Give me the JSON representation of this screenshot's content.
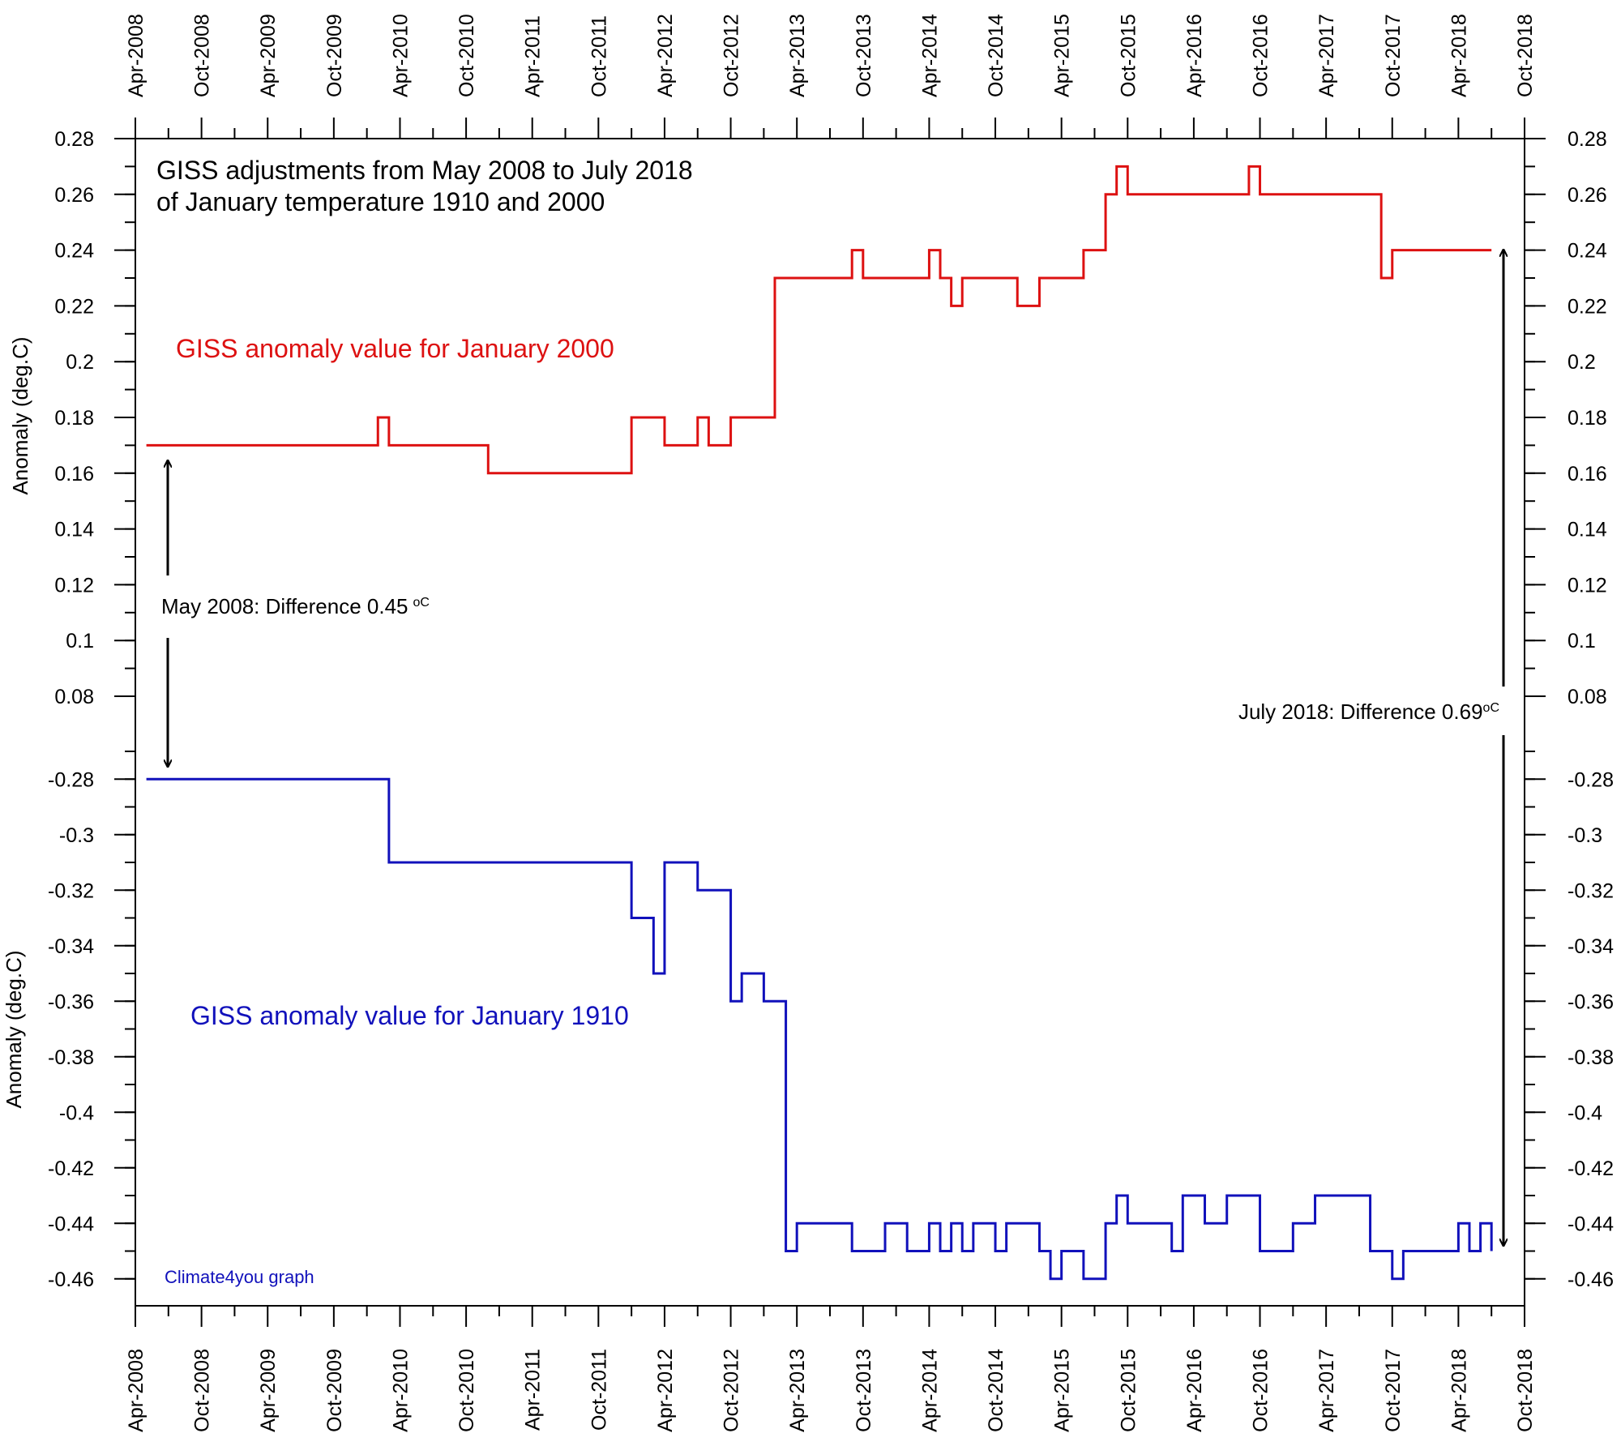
{
  "chart_data": {
    "type": "line",
    "step": true,
    "title_lines": [
      "GISS adjustments from May 2008 to July 2018",
      "of January temperature 1910 and 2000"
    ],
    "ylabel": "Anomaly (deg.C)",
    "credit": "Climate4you graph",
    "x_ticks": [
      "Apr-2008",
      "Oct-2008",
      "Apr-2009",
      "Oct-2009",
      "Apr-2010",
      "Oct-2010",
      "Apr-2011",
      "Oct-2011",
      "Apr-2012",
      "Oct-2012",
      "Apr-2013",
      "Oct-2013",
      "Apr-2014",
      "Oct-2014",
      "Apr-2015",
      "Oct-2015",
      "Apr-2016",
      "Oct-2016",
      "Apr-2017",
      "Oct-2017",
      "Apr-2018",
      "Oct-2018"
    ],
    "x_range": [
      "2008-04",
      "2018-10"
    ],
    "panels": [
      {
        "ylim": [
          0.08,
          0.28
        ],
        "y_ticks": [
          "0.08",
          "0.1",
          "0.12",
          "0.14",
          "0.16",
          "0.18",
          "0.2",
          "0.22",
          "0.24",
          "0.26",
          "0.28"
        ],
        "series": [
          {
            "name": "GISS anomaly value for January 2000",
            "color": "#dd1111",
            "x": [
              "2008-05",
              "2010-02",
              "2010-03",
              "2010-12",
              "2012-01",
              "2012-04",
              "2012-07",
              "2012-08",
              "2012-10",
              "2013-02",
              "2013-09",
              "2013-10",
              "2014-04",
              "2014-05",
              "2014-06",
              "2014-07",
              "2014-12",
              "2015-02",
              "2015-06",
              "2015-08",
              "2015-09",
              "2015-10",
              "2016-09",
              "2016-10",
              "2017-09",
              "2017-10",
              "2018-07"
            ],
            "values": [
              0.17,
              0.18,
              0.17,
              0.16,
              0.18,
              0.17,
              0.18,
              0.17,
              0.18,
              0.23,
              0.24,
              0.23,
              0.24,
              0.23,
              0.22,
              0.23,
              0.22,
              0.23,
              0.24,
              0.26,
              0.27,
              0.26,
              0.27,
              0.26,
              0.23,
              0.24,
              0.24
            ]
          }
        ]
      },
      {
        "ylim": [
          -0.47,
          -0.27
        ],
        "y_ticks": [
          "-0.28",
          "-0.3",
          "-0.32",
          "-0.34",
          "-0.36",
          "-0.38",
          "-0.4",
          "-0.42",
          "-0.44",
          "-0.46"
        ],
        "series": [
          {
            "name": "GISS anomaly value for January 1910",
            "color": "#1111bb",
            "x": [
              "2008-05",
              "2010-03",
              "2012-01",
              "2012-03",
              "2012-04",
              "2012-07",
              "2012-10",
              "2012-11",
              "2013-01",
              "2013-03",
              "2013-04",
              "2013-09",
              "2013-12",
              "2014-02",
              "2014-04",
              "2014-05",
              "2014-06",
              "2014-07",
              "2014-08",
              "2014-10",
              "2014-11",
              "2015-02",
              "2015-03",
              "2015-04",
              "2015-06",
              "2015-08",
              "2015-09",
              "2015-10",
              "2016-02",
              "2016-03",
              "2016-05",
              "2016-07",
              "2016-09",
              "2016-10",
              "2017-01",
              "2017-03",
              "2017-08",
              "2017-10",
              "2017-11",
              "2018-04",
              "2018-05",
              "2018-06",
              "2018-07"
            ],
            "values": [
              -0.28,
              -0.31,
              -0.33,
              -0.35,
              -0.31,
              -0.32,
              -0.36,
              -0.35,
              -0.36,
              -0.45,
              -0.44,
              -0.45,
              -0.44,
              -0.45,
              -0.44,
              -0.45,
              -0.44,
              -0.45,
              -0.44,
              -0.45,
              -0.44,
              -0.45,
              -0.46,
              -0.45,
              -0.46,
              -0.44,
              -0.43,
              -0.44,
              -0.45,
              -0.43,
              -0.44,
              -0.43,
              -0.43,
              -0.45,
              -0.44,
              -0.43,
              -0.45,
              -0.46,
              -0.45,
              -0.44,
              -0.45,
              -0.44,
              -0.45
            ]
          }
        ]
      }
    ],
    "annotations": [
      {
        "text": "May 2008: Difference 0.45",
        "unit": "oC"
      },
      {
        "text": "July 2018: Difference 0.69",
        "unit": "oC"
      }
    ]
  }
}
